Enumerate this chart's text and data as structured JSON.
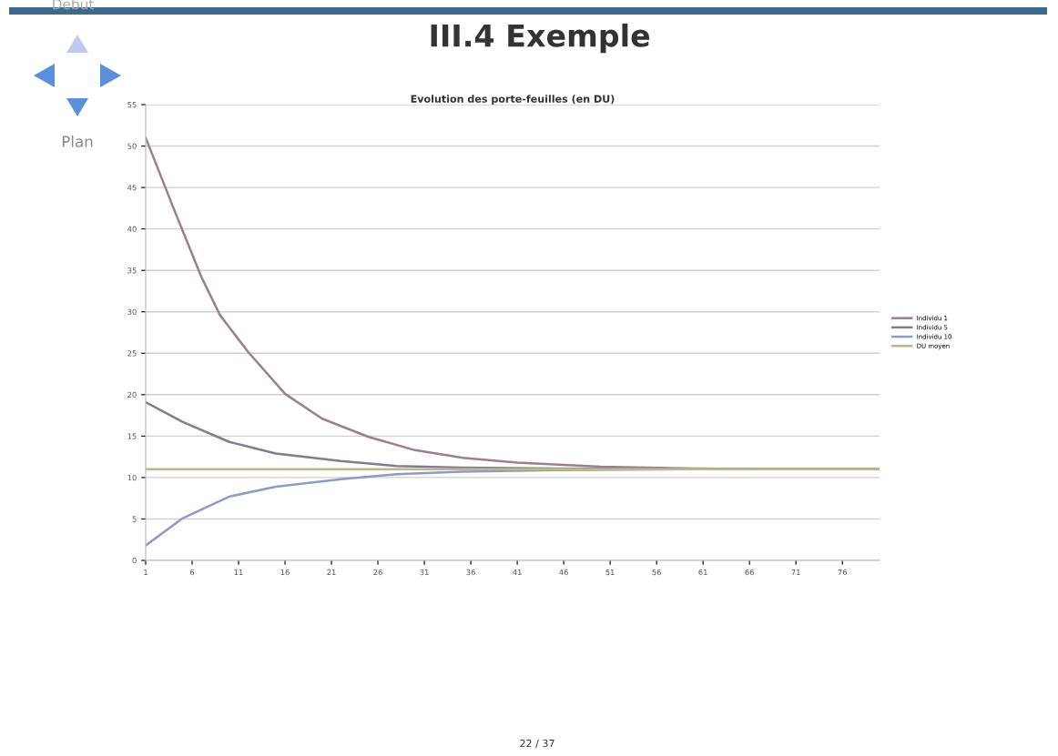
{
  "chart_data": {
    "type": "line",
    "title": "III.4 Exemple",
    "subtitle": "Evolution des porte-feuilles (en DU)",
    "annotations": [
      "Debut",
      "Plan",
      "22 / 37"
    ],
    "series": [
      {
        "name": "Individu 1",
        "color": "#9c7e90",
        "x": [
          1,
          4,
          7,
          9,
          12,
          16,
          20,
          25,
          30,
          35,
          41,
          50,
          60,
          70,
          80
        ],
        "values": [
          51.0,
          42.5,
          34.2,
          29.6,
          25.2,
          20.1,
          17.1,
          14.9,
          13.3,
          12.4,
          11.8,
          11.3,
          11.1,
          11.0,
          11.0
        ]
      },
      {
        "name": "Individu 5",
        "color": "#857a90",
        "x": [
          1,
          5,
          10,
          15,
          22,
          28,
          35,
          45,
          60,
          80
        ],
        "values": [
          19.1,
          16.7,
          14.3,
          12.9,
          12.0,
          11.4,
          11.2,
          11.1,
          11.0,
          11.0
        ]
      },
      {
        "name": "Individu 10",
        "color": "#8c9cc4",
        "x": [
          1,
          5,
          10,
          15,
          22,
          28,
          35,
          45,
          60,
          80
        ],
        "values": [
          1.8,
          5.1,
          7.7,
          8.9,
          9.8,
          10.4,
          10.7,
          10.9,
          11.0,
          11.0
        ]
      },
      {
        "name": "DU moyen",
        "color": "#bdb88e",
        "x": [
          1,
          80
        ],
        "values": [
          11.0,
          11.0
        ]
      }
    ],
    "xlim": [
      1,
      80
    ],
    "xticks": [
      1,
      6,
      11,
      16,
      21,
      26,
      31,
      36,
      41,
      46,
      51,
      56,
      61,
      66,
      71,
      76
    ],
    "ylim": [
      0,
      55
    ],
    "yticks": [
      0,
      5,
      10,
      15,
      20,
      25,
      30,
      35,
      40,
      45,
      50,
      55
    ],
    "grid": "y",
    "legend": "right",
    "marker": "none",
    "line_style": "solid"
  }
}
